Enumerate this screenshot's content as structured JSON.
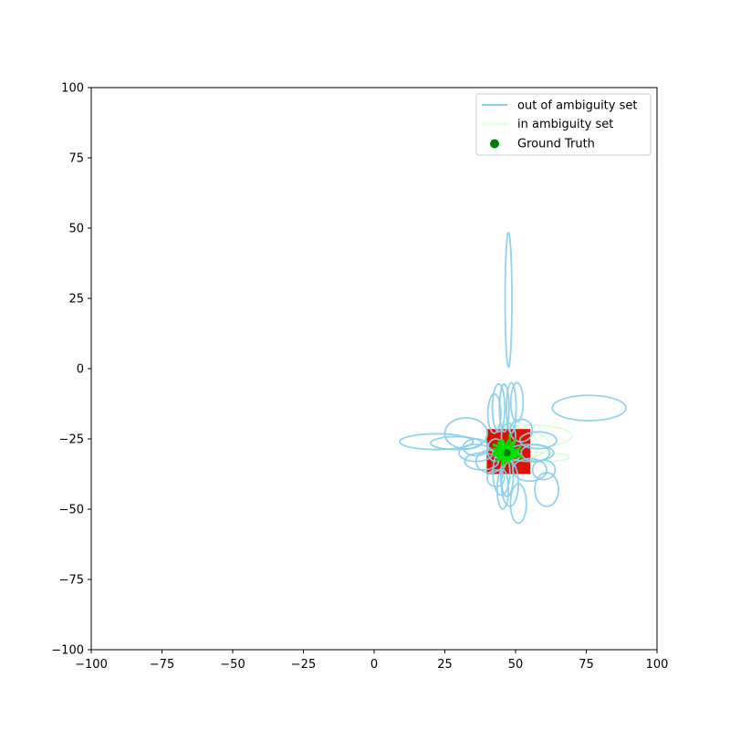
{
  "chart_data": {
    "type": "scatter",
    "title": "",
    "xlabel": "",
    "ylabel": "",
    "xlim": [
      -100,
      100
    ],
    "ylim": [
      -100,
      100
    ],
    "xticks": [
      -100,
      -75,
      -50,
      -25,
      0,
      25,
      50,
      75,
      100
    ],
    "yticks": [
      -100,
      -75,
      -50,
      -25,
      0,
      25,
      50,
      75,
      100
    ],
    "xtick_labels": [
      "−100",
      "−75",
      "−50",
      "−25",
      "0",
      "25",
      "50",
      "75",
      "100"
    ],
    "ytick_labels": [
      "−100",
      "−75",
      "−50",
      "−25",
      "0",
      "25",
      "50",
      "75",
      "100"
    ],
    "grid": false,
    "legend": {
      "placement": "top-right",
      "entries": [
        {
          "label": "out of ambiguity set",
          "marker": "line",
          "color": "#87CEEB"
        },
        {
          "label": "in ambiguity set",
          "marker": "line",
          "color": "#CCFFCC"
        },
        {
          "label": "Ground Truth",
          "marker": "dot",
          "color": "#008000"
        }
      ]
    },
    "series": [
      {
        "name": "out of ambiguity set",
        "kind": "ellipses",
        "color": "#87CEEB",
        "ellipses": [
          {
            "cx": 47.5,
            "cy": 24.5,
            "rx": 1.2,
            "ry": 24
          },
          {
            "cx": 76,
            "cy": -14,
            "rx": 13,
            "ry": 4.5
          },
          {
            "cx": 22,
            "cy": -26,
            "rx": 13,
            "ry": 2.8
          },
          {
            "cx": 32.5,
            "cy": -23,
            "rx": 7.5,
            "ry": 5.5
          },
          {
            "cx": 29,
            "cy": -26.5,
            "rx": 9,
            "ry": 2.3
          },
          {
            "cx": 51,
            "cy": -48,
            "rx": 2.8,
            "ry": 7
          },
          {
            "cx": 61,
            "cy": -43,
            "rx": 4.2,
            "ry": 6
          },
          {
            "cx": 44,
            "cy": -14,
            "rx": 2.2,
            "ry": 8.5
          },
          {
            "cx": 46,
            "cy": -14,
            "rx": 1.7,
            "ry": 8.5
          },
          {
            "cx": 50.5,
            "cy": -12,
            "rx": 2.2,
            "ry": 7
          },
          {
            "cx": 48.5,
            "cy": -14,
            "rx": 1.7,
            "ry": 9
          },
          {
            "cx": 42.5,
            "cy": -16,
            "rx": 2.3,
            "ry": 7
          },
          {
            "cx": 47.5,
            "cy": -24,
            "rx": 2.5,
            "ry": 4.5
          },
          {
            "cx": 58,
            "cy": -25.5,
            "rx": 6.5,
            "ry": 3
          },
          {
            "cx": 55,
            "cy": -30,
            "rx": 8.5,
            "ry": 3
          },
          {
            "cx": 57,
            "cy": -30,
            "rx": 5,
            "ry": 3
          },
          {
            "cx": 38,
            "cy": -33,
            "rx": 6,
            "ry": 3
          },
          {
            "cx": 36,
            "cy": -30,
            "rx": 6,
            "ry": 3
          },
          {
            "cx": 36,
            "cy": -28,
            "rx": 4.5,
            "ry": 3
          },
          {
            "cx": 45,
            "cy": -37,
            "rx": 3,
            "ry": 8
          },
          {
            "cx": 48,
            "cy": -41,
            "rx": 3,
            "ry": 8
          },
          {
            "cx": 47,
            "cy": -38,
            "rx": 2.2,
            "ry": 7.5
          },
          {
            "cx": 45.5,
            "cy": -43,
            "rx": 2,
            "ry": 7
          },
          {
            "cx": 48,
            "cy": -31,
            "rx": 3.5,
            "ry": 2
          },
          {
            "cx": 43,
            "cy": -29,
            "rx": 3,
            "ry": 4
          },
          {
            "cx": 55,
            "cy": -36,
            "rx": 6,
            "ry": 4
          },
          {
            "cx": 60,
            "cy": -36,
            "rx": 4,
            "ry": 3.5
          },
          {
            "cx": 41,
            "cy": -33,
            "rx": 5,
            "ry": 4
          },
          {
            "cx": 52,
            "cy": -22,
            "rx": 4,
            "ry": 4
          },
          {
            "cx": 43,
            "cy": -39,
            "rx": 3,
            "ry": 3
          }
        ]
      },
      {
        "name": "in ambiguity set",
        "kind": "ellipses",
        "color": "#CCFFCC",
        "ellipses": [
          {
            "cx": 55,
            "cy": -24,
            "rx": 15,
            "ry": 4
          },
          {
            "cx": 56,
            "cy": -31.5,
            "rx": 13,
            "ry": 1.8
          },
          {
            "cx": 49,
            "cy": -28,
            "rx": 9,
            "ry": 7
          },
          {
            "cx": 47,
            "cy": -28,
            "rx": 6,
            "ry": 9
          },
          {
            "cx": 46,
            "cy": -30,
            "rx": 4,
            "ry": 11
          },
          {
            "cx": 51,
            "cy": -27,
            "rx": 11,
            "ry": 5
          }
        ]
      },
      {
        "name": "",
        "kind": "polyline-cluster",
        "color": "#00E000",
        "center": {
          "x": 47,
          "y": -30
        }
      },
      {
        "name": "",
        "kind": "filled-rectangle",
        "color": "#DD1100",
        "x0": 39.8,
        "x1": 55.2,
        "y0": -37.5,
        "y1": -21.5
      },
      {
        "name": "Ground Truth",
        "kind": "points",
        "color": "#008000",
        "points": [
          {
            "x": 47,
            "y": -30
          }
        ]
      }
    ]
  }
}
